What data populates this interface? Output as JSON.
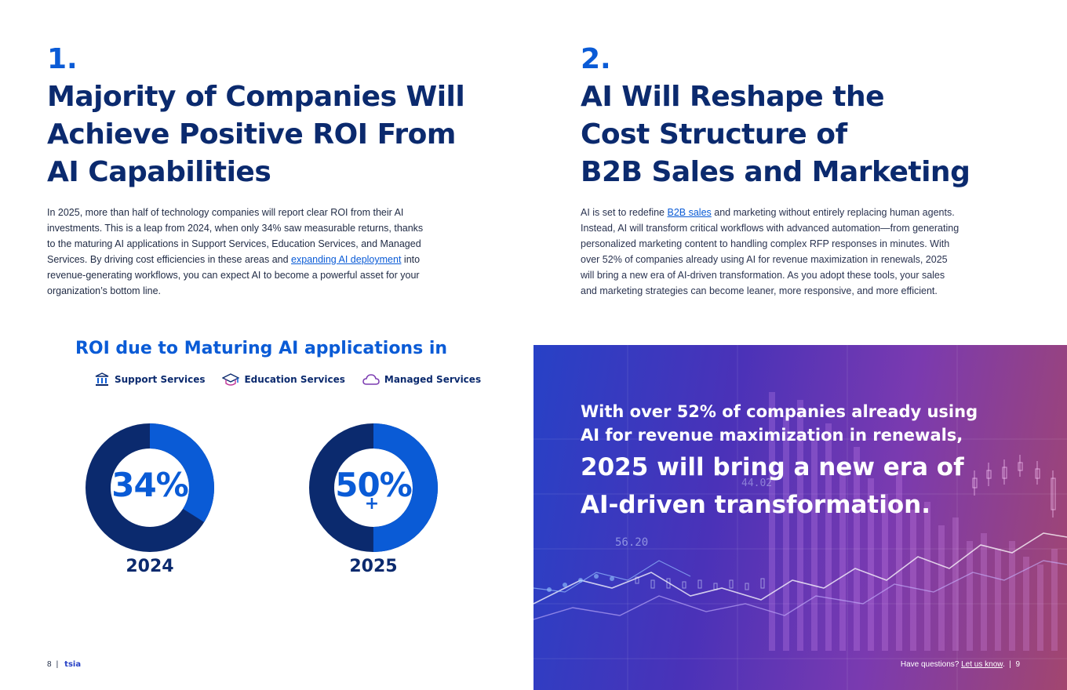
{
  "left": {
    "number": "1.",
    "title_lines": [
      "Majority of Companies Will",
      "Achieve Positive ROI From",
      "AI Capabilities"
    ],
    "body_part1": "In 2025, more than half of technology companies will report clear ROI from their AI investments. This is a leap from 2024, when only 34% saw measurable returns, thanks to the maturing AI applications in Support Services, Education Services, and Managed Services. By driving cost efficiencies in these areas and ",
    "body_link": "expanding AI deployment",
    "body_part2": " into revenue-generating workflows, you can expect AI to become a powerful asset for your organization’s bottom line."
  },
  "right": {
    "number": "2.",
    "title_lines": [
      "AI Will Reshape the",
      "Cost Structure of",
      "B2B Sales and Marketing"
    ],
    "body_part1": "AI is set to redefine ",
    "body_link": "B2B sales",
    "body_part2": " and marketing without entirely replacing human agents. Instead, AI will transform critical workflows with advanced automation—from generating personalized marketing content to handling complex RFP responses in minutes. With over 52% of companies already using AI for revenue maximization in renewals, 2025 will bring a new era of AI-driven transformation. As you adopt these tools, your sales and marketing strategies can become leaner, more responsive, and more efficient."
  },
  "chart": {
    "title": "ROI due to Maturing AI applications in",
    "legend": [
      {
        "label": "Support Services",
        "icon": "bank-building-icon"
      },
      {
        "label": "Education Services",
        "icon": "graduation-cap-icon"
      },
      {
        "label": "Managed Services",
        "icon": "cloud-icon"
      }
    ]
  },
  "chart_data": {
    "type": "pie",
    "title": "ROI due to Maturing AI applications in",
    "categories": [
      "2024",
      "2025"
    ],
    "values": [
      34,
      50
    ],
    "value_labels": [
      "34%",
      "50%"
    ],
    "value_suffix": [
      "",
      "+"
    ],
    "colors": {
      "highlight": "#0a5bd6",
      "remainder": "#0b2a6e"
    }
  },
  "banner": {
    "quote_small_lines": [
      "With over 52% of companies already using",
      "AI for revenue maximization in renewals,"
    ],
    "quote_big_lines": [
      "2025 will bring a new era of",
      "AI-driven transformation."
    ],
    "ticker_labels": [
      "56.20",
      "44.02"
    ]
  },
  "footer": {
    "left_page": "8",
    "separator": "|",
    "logo": "tsia",
    "right_prefix": "Have questions? ",
    "right_link": "Let us know",
    "right_suffix": ".  |  ",
    "right_page": "9"
  }
}
